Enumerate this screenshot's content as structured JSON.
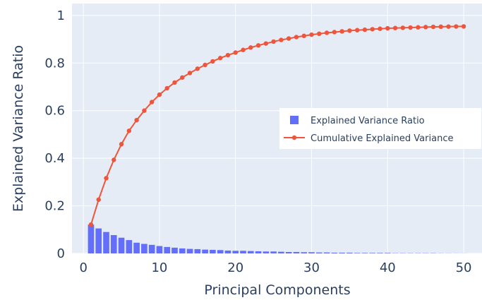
{
  "chart_data": {
    "type": "bar+line",
    "xlabel": "Principal Components",
    "ylabel": "Explained Variance Ratio",
    "xlim": [
      -1.5,
      52.5
    ],
    "ylim": [
      0,
      1.05
    ],
    "x_ticks": [
      0,
      10,
      20,
      30,
      40,
      50
    ],
    "x_tick_labels": [
      "0",
      "10",
      "20",
      "30",
      "40",
      "50"
    ],
    "y_ticks": [
      0,
      0.2,
      0.4,
      0.6,
      0.8,
      1
    ],
    "y_tick_labels": [
      "0",
      "0.2",
      "0.4",
      "0.6",
      "0.8",
      "1"
    ],
    "grid": true,
    "legend_position": "right",
    "series": [
      {
        "name": "Explained Variance Ratio",
        "type": "bar",
        "color": "#636efa",
        "x": [
          1,
          2,
          3,
          4,
          5,
          6,
          7,
          8,
          9,
          10,
          11,
          12,
          13,
          14,
          15,
          16,
          17,
          18,
          19,
          20,
          21,
          22,
          23,
          24,
          25,
          26,
          27,
          28,
          29,
          30,
          31,
          32,
          33,
          34,
          35,
          36,
          37,
          38,
          39,
          40,
          41,
          42,
          43,
          44,
          45,
          46,
          47,
          48,
          49,
          50
        ],
        "values": [
          0.121,
          0.105,
          0.09,
          0.077,
          0.066,
          0.056,
          0.045,
          0.04,
          0.036,
          0.031,
          0.027,
          0.024,
          0.021,
          0.019,
          0.018,
          0.016,
          0.015,
          0.014,
          0.012,
          0.011,
          0.011,
          0.01,
          0.009,
          0.008,
          0.008,
          0.007,
          0.006,
          0.006,
          0.005,
          0.005,
          0.004,
          0.004,
          0.003,
          0.003,
          0.003,
          0.002,
          0.002,
          0.002,
          0.002,
          0.002,
          0.001,
          0.001,
          0.001,
          0.001,
          0.001,
          0.001,
          0.0006,
          0.0005,
          0.0004,
          0.0003
        ]
      },
      {
        "name": "Cumulative Explained Variance",
        "type": "line",
        "color": "#ef553b",
        "x": [
          1,
          2,
          3,
          4,
          5,
          6,
          7,
          8,
          9,
          10,
          11,
          12,
          13,
          14,
          15,
          16,
          17,
          18,
          19,
          20,
          21,
          22,
          23,
          24,
          25,
          26,
          27,
          28,
          29,
          30,
          31,
          32,
          33,
          34,
          35,
          36,
          37,
          38,
          39,
          40,
          41,
          42,
          43,
          44,
          45,
          46,
          47,
          48,
          49,
          50
        ],
        "values": [
          0.121,
          0.226,
          0.316,
          0.393,
          0.459,
          0.515,
          0.56,
          0.6,
          0.636,
          0.667,
          0.694,
          0.718,
          0.739,
          0.758,
          0.776,
          0.792,
          0.807,
          0.821,
          0.833,
          0.844,
          0.855,
          0.865,
          0.874,
          0.882,
          0.89,
          0.897,
          0.903,
          0.909,
          0.914,
          0.919,
          0.923,
          0.927,
          0.93,
          0.933,
          0.936,
          0.938,
          0.94,
          0.942,
          0.944,
          0.946,
          0.947,
          0.948,
          0.949,
          0.95,
          0.951,
          0.952,
          0.9526,
          0.9531,
          0.9535,
          0.9538
        ]
      }
    ]
  },
  "colors": {
    "background": "#ffffff",
    "plot_background": "#e5ecf6",
    "grid": "#ffffff",
    "text": "#2a3f5f"
  }
}
